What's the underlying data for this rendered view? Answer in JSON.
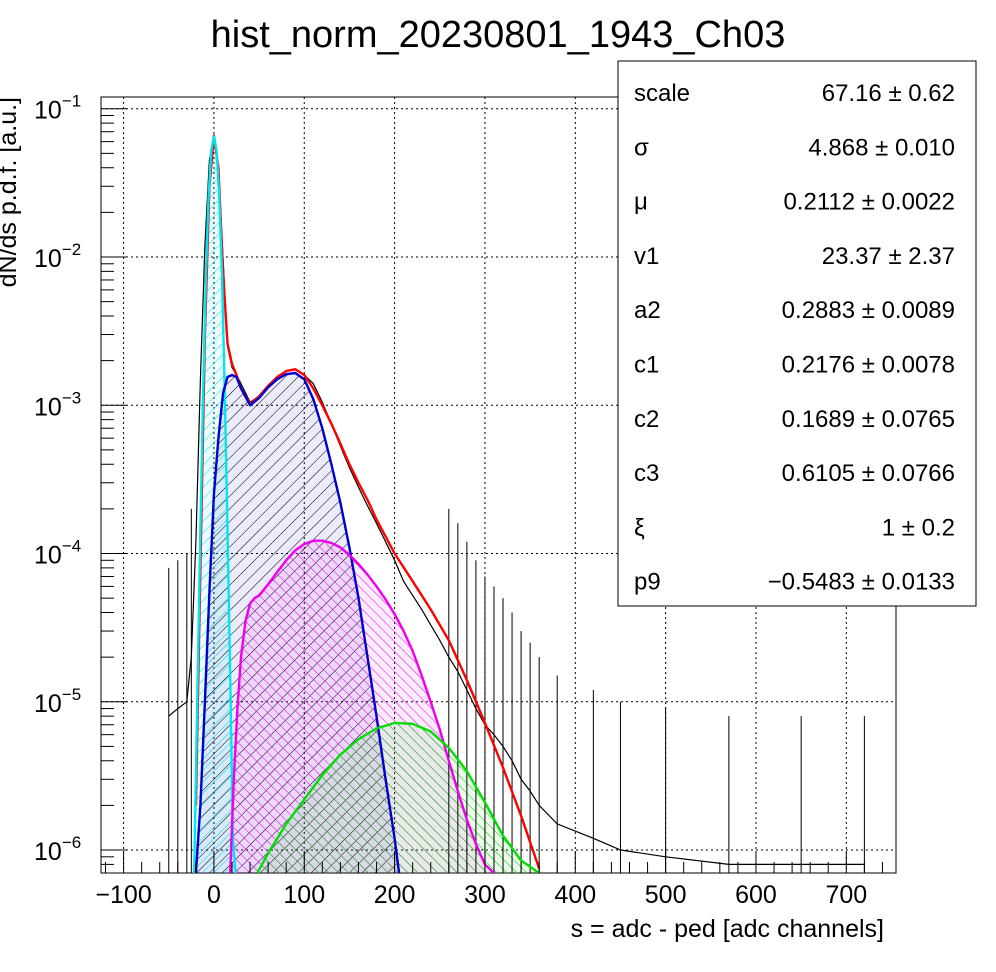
{
  "chart_data": {
    "type": "line",
    "title": "hist_norm_20230801_1943_Ch03",
    "xlabel": "s = adc - ped [adc channels]",
    "ylabel": "dN/ds p.d.f. [a.u.]",
    "x_range": [
      -125,
      755
    ],
    "y_range": [
      7e-07,
      0.12
    ],
    "y_scale": "log",
    "grid": true,
    "x_ticks": [
      -100,
      0,
      100,
      200,
      300,
      400,
      500,
      600,
      700
    ],
    "y_ticks": [
      {
        "value": 1e-06,
        "base": "10",
        "exp": "−6"
      },
      {
        "value": 1e-05,
        "base": "10",
        "exp": "−5"
      },
      {
        "value": 0.0001,
        "base": "10",
        "exp": "−4"
      },
      {
        "value": 0.001,
        "base": "10",
        "exp": "−3"
      },
      {
        "value": 0.01,
        "base": "10",
        "exp": "−2"
      },
      {
        "value": 0.1,
        "base": "10",
        "exp": "−1"
      }
    ],
    "histogram": {
      "color": "#000000",
      "x": [
        -50,
        -40,
        -30,
        -25,
        -20,
        -15,
        -10,
        -5,
        0,
        5,
        10,
        15,
        20,
        25,
        30,
        40,
        50,
        60,
        70,
        80,
        90,
        100,
        110,
        120,
        130,
        140,
        150,
        160,
        170,
        180,
        190,
        200,
        210,
        220,
        230,
        240,
        250,
        260,
        270,
        280,
        290,
        300,
        310,
        320,
        330,
        340,
        350,
        360,
        380,
        420,
        450,
        500,
        570,
        650,
        720
      ],
      "y": [
        8e-06,
        9e-06,
        1e-05,
        2e-05,
        0.00012,
        0.0015,
        0.012,
        0.045,
        0.066,
        0.04,
        0.01,
        0.0025,
        0.0018,
        0.0016,
        0.0014,
        0.00105,
        0.00115,
        0.00135,
        0.00155,
        0.0017,
        0.00175,
        0.0016,
        0.0014,
        0.00105,
        0.00075,
        0.00053,
        0.00038,
        0.00028,
        0.00021,
        0.00016,
        0.00012,
        9e-05,
        6.5e-05,
        5.2e-05,
        4.2e-05,
        3.3e-05,
        2.6e-05,
        2e-05,
        1.6e-05,
        1.2e-05,
        9e-06,
        7e-06,
        6e-06,
        5e-06,
        4e-06,
        3e-06,
        2.5e-06,
        2e-06,
        1.5e-06,
        1.2e-06,
        1e-06,
        9e-07,
        8e-07,
        8e-07,
        8e-07
      ]
    },
    "series": [
      {
        "color": "#ff0000",
        "fill": "none",
        "x": [
          -20,
          -15,
          -10,
          -5,
          0,
          5,
          10,
          15,
          20,
          25,
          30,
          40,
          50,
          60,
          70,
          80,
          90,
          100,
          110,
          120,
          130,
          140,
          150,
          160,
          170,
          180,
          190,
          200,
          220,
          240,
          260,
          280,
          300,
          320,
          340,
          360
        ],
        "y": [
          2e-06,
          8e-05,
          0.003,
          0.03,
          0.066,
          0.04,
          0.008,
          0.0026,
          0.0019,
          0.0016,
          0.0013,
          0.00102,
          0.00115,
          0.00135,
          0.00155,
          0.0017,
          0.00175,
          0.0016,
          0.0013,
          0.001,
          0.00075,
          0.00055,
          0.0004,
          0.0003,
          0.00023,
          0.00017,
          0.00013,
          0.0001,
          6.5e-05,
          4.2e-05,
          2.6e-05,
          1.4e-05,
          7.2e-06,
          3.6e-06,
          1.7e-06,
          7.5e-07
        ]
      },
      {
        "color": "#00e5ee",
        "fill": "#00e5ee",
        "hatch": "pat-cyan",
        "x": [
          -22,
          -18,
          -15,
          -12,
          -9,
          -6,
          -3,
          0,
          3,
          6,
          9,
          12,
          15,
          18,
          21,
          24
        ],
        "y": [
          7e-07,
          1.5e-05,
          0.00015,
          0.0012,
          0.0072,
          0.025,
          0.052,
          0.065,
          0.052,
          0.025,
          0.0072,
          0.0012,
          0.00015,
          1.5e-05,
          1.2e-06,
          7e-07
        ]
      },
      {
        "color": "#0000cd",
        "fill": "#0000cd",
        "hatch": "pat-blue",
        "x": [
          -20,
          -15,
          -10,
          -5,
          0,
          5,
          10,
          15,
          20,
          25,
          30,
          40,
          50,
          60,
          70,
          80,
          90,
          100,
          110,
          120,
          130,
          140,
          150,
          160,
          170,
          180,
          190,
          200,
          205
        ],
        "y": [
          7e-07,
          2e-06,
          1e-05,
          5.5e-05,
          0.00025,
          0.0006,
          0.0012,
          0.00155,
          0.0016,
          0.00155,
          0.0013,
          0.001,
          0.00112,
          0.00132,
          0.0015,
          0.00162,
          0.00165,
          0.0015,
          0.0011,
          0.0007,
          0.0004,
          0.00022,
          0.00011,
          5e-05,
          2e-05,
          8e-06,
          3e-06,
          1.2e-06,
          7e-07
        ]
      },
      {
        "color": "#ee00ee",
        "fill": "#ee00ee",
        "hatch": "pat-magenta",
        "x": [
          18,
          22,
          26,
          30,
          35,
          40,
          45,
          50,
          60,
          70,
          80,
          90,
          100,
          110,
          120,
          130,
          140,
          150,
          160,
          170,
          180,
          190,
          200,
          210,
          220,
          230,
          240,
          250,
          260,
          270,
          280,
          290,
          300,
          310
        ],
        "y": [
          7e-07,
          3e-06,
          9e-06,
          2e-05,
          3.5e-05,
          4.6e-05,
          5e-05,
          5.2e-05,
          6.2e-05,
          7.5e-05,
          9e-05,
          0.000105,
          0.000116,
          0.000122,
          0.000122,
          0.000118,
          0.00011,
          9.8e-05,
          8.5e-05,
          7.2e-05,
          6e-05,
          4.9e-05,
          3.9e-05,
          3e-05,
          2.2e-05,
          1.5e-05,
          1e-05,
          6.5e-06,
          4e-06,
          2.5e-06,
          1.6e-06,
          1.1e-06,
          8e-07,
          7e-07
        ]
      },
      {
        "color": "#00dd00",
        "fill": "#00dd00",
        "hatch": "pat-green",
        "x": [
          48,
          60,
          80,
          100,
          120,
          140,
          160,
          180,
          200,
          220,
          240,
          260,
          280,
          300,
          320,
          340,
          360
        ],
        "y": [
          7e-07,
          9.5e-07,
          1.5e-06,
          2.2e-06,
          3.2e-06,
          4.4e-06,
          5.6e-06,
          6.6e-06,
          7.2e-06,
          7.1e-06,
          6.3e-06,
          4.9e-06,
          3.4e-06,
          2.1e-06,
          1.25e-06,
          8.5e-07,
          7e-07
        ]
      }
    ],
    "stats": [
      {
        "name": "scale",
        "value": "67.16",
        "error": "0.62"
      },
      {
        "name": "σ",
        "value": "4.868",
        "error": "0.010"
      },
      {
        "name": "μ",
        "value": "0.2112",
        "error": "0.0022"
      },
      {
        "name": "v1",
        "value": "23.37",
        "error": "2.37"
      },
      {
        "name": "a2",
        "value": "0.2883",
        "error": "0.0089"
      },
      {
        "name": "c1",
        "value": "0.2176",
        "error": "0.0078"
      },
      {
        "name": "c2",
        "value": "0.1689",
        "error": "0.0765"
      },
      {
        "name": "c3",
        "value": "0.6105",
        "error": "0.0766"
      },
      {
        "name": "ξ",
        "value": "1",
        "error": "0.2"
      },
      {
        "name": "p9",
        "value": "−0.5483",
        "error": "0.0133"
      }
    ],
    "pm_symbol": "±"
  }
}
